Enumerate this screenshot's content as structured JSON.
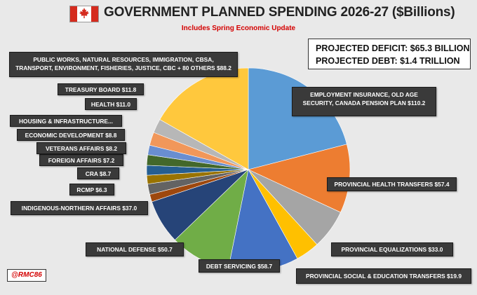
{
  "header": {
    "title": "GOVERNMENT PLANNED SPENDING 2026-27 ($Billions)",
    "subtitle": "Includes Spring Economic Update"
  },
  "summary": {
    "deficit": "PROJECTED DEFICIT: $65.3 BILLION",
    "debt": "PROJECTED DEBT: $1.4 TRILLION"
  },
  "credit": "@RMC86",
  "colors": {
    "flag_red": "#d52b1e",
    "subtitle_red": "#d40000"
  },
  "chart_data": {
    "type": "pie",
    "start_angle_deg": 0,
    "slices": [
      {
        "label": "EMPLOYMENT INSURANCE, OLD AGE SECURITY, CANADA PENSION PLAN $110.2",
        "value": 110.2,
        "color": "#5b9bd5"
      },
      {
        "label": "PROVINCIAL HEALTH TRANSFERS $57.4",
        "value": 57.4,
        "color": "#ed7d31"
      },
      {
        "label": "PROVINCIAL EQUALIZATIONS $33.0",
        "value": 33.0,
        "color": "#a5a5a5"
      },
      {
        "label": "PROVINCIAL SOCIAL & EDUCATION TRANSFERS $19.9",
        "value": 19.9,
        "color": "#ffc000"
      },
      {
        "label": "DEBT SERVICING $58.7",
        "value": 58.7,
        "color": "#4472c4"
      },
      {
        "label": "NATIONAL DEFENSE $50.7",
        "value": 50.7,
        "color": "#70ad47"
      },
      {
        "label": "INDIGENOUS-NORTHERN AFFAIRS $37.0",
        "value": 37.0,
        "color": "#264478"
      },
      {
        "label": "RCMP $6.3",
        "value": 6.3,
        "color": "#9e480e"
      },
      {
        "label": "CRA $8.7",
        "value": 8.7,
        "color": "#636363"
      },
      {
        "label": "FOREIGN AFFAIRS $7.2",
        "value": 7.2,
        "color": "#997300"
      },
      {
        "label": "VETERANS AFFAIRS $8.2",
        "value": 8.2,
        "color": "#255e91"
      },
      {
        "label": "ECONOMIC DEVELOPMENT $8.8",
        "value": 8.8,
        "color": "#43682b"
      },
      {
        "label": "HOUSING & INFRASTRUCTURE...",
        "value": 8.0,
        "color": "#698ed0"
      },
      {
        "label": "HEALTH $11.0",
        "value": 11.0,
        "color": "#f1975a"
      },
      {
        "label": "TREASURY BOARD $11.8",
        "value": 11.8,
        "color": "#b7b7b7"
      },
      {
        "label": "PUBLIC WORKS, NATURAL RESOURCES, IMMIGRATION, CBSA, TRANSPORT, ENVIRONMENT, FISHERIES, JUSTICE, CBC + 80 OTHERS $88.2",
        "value": 88.2,
        "color": "#ffc83d"
      }
    ]
  }
}
